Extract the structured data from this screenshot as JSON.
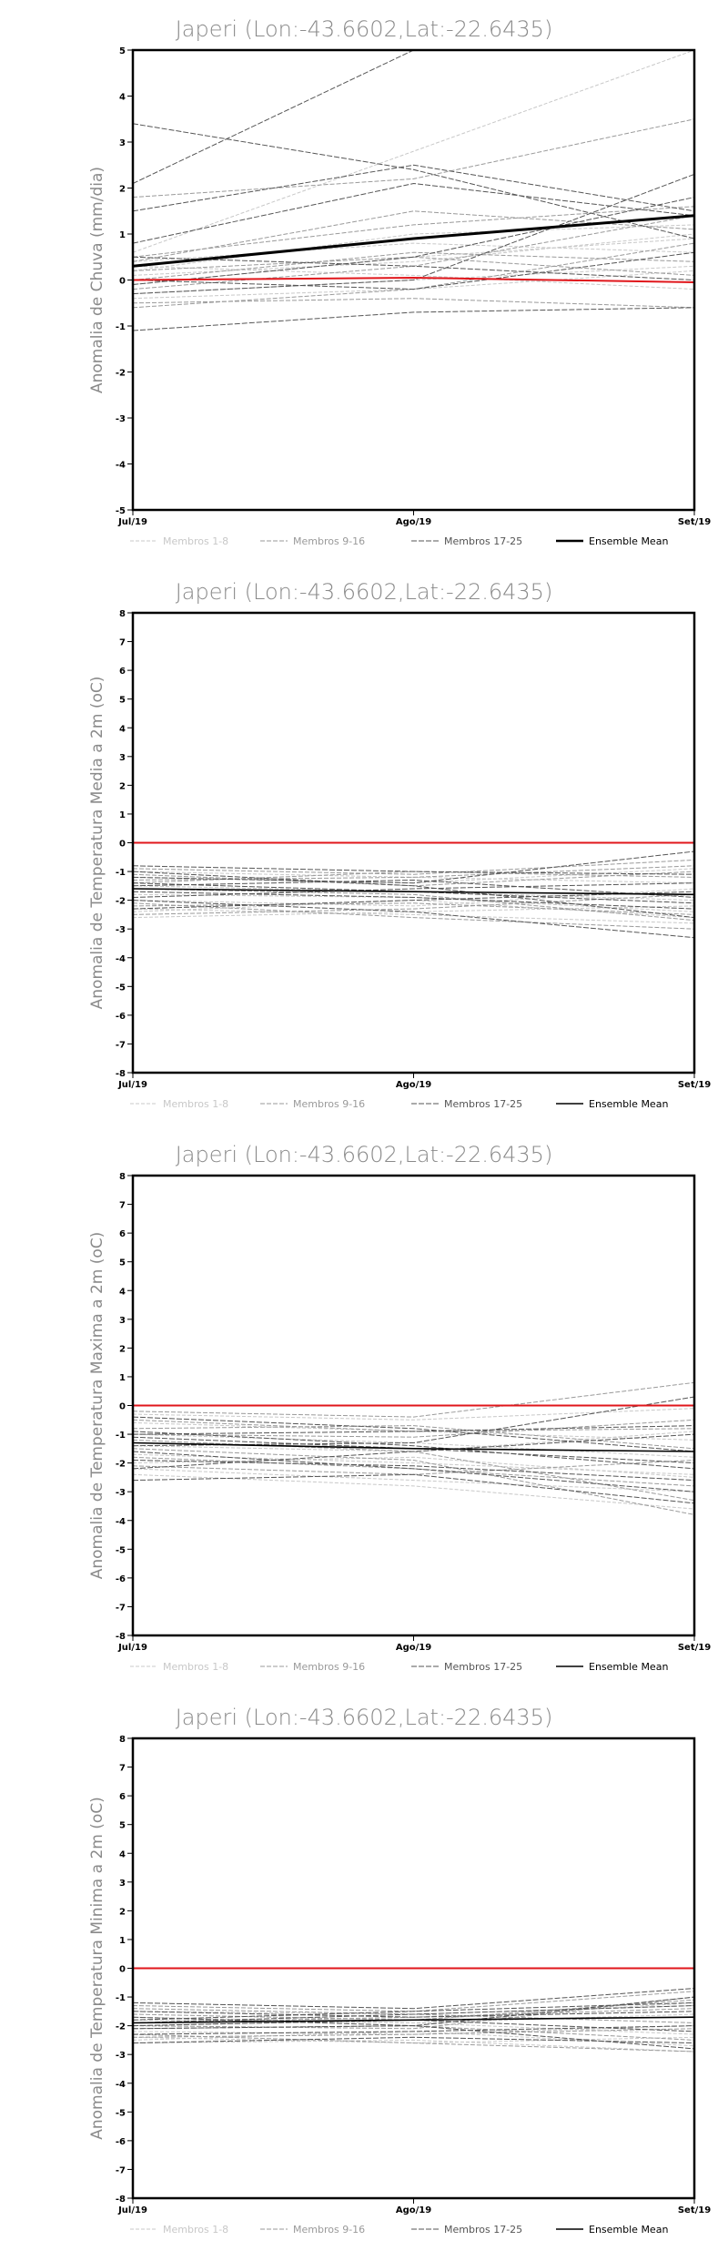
{
  "colors": {
    "zero_line": "#e0161b",
    "mean_line": "#000000",
    "members_1_8": "#c8c8c8",
    "members_9_16": "#9a9a9a",
    "members_17_25": "#555555"
  },
  "legend": [
    {
      "label": "Membros 1-8",
      "color": "#c8c8c8"
    },
    {
      "label": "Membros 9-16",
      "color": "#9a9a9a"
    },
    {
      "label": "Membros 17-25",
      "color": "#555555"
    },
    {
      "label": "Ensemble Mean",
      "color": "#000000"
    }
  ],
  "chart_data": [
    {
      "type": "line",
      "title": "Japeri (Lon:-43.6602,Lat:-22.6435)",
      "ylabel": "Anomalia de Chuva (mm/dia)",
      "x": [
        "Jul/19",
        "Ago/19",
        "Set/19"
      ],
      "ylim": [
        -5,
        5
      ],
      "yticks": [
        "-5",
        "-4",
        "-3",
        "-2",
        "-1",
        "0",
        "1",
        "2",
        "3",
        "4",
        "5"
      ],
      "members_1_8": [
        [
          0.6,
          2.8,
          5.0
        ],
        [
          0.2,
          1.0,
          1.2
        ],
        [
          -0.1,
          0.5,
          0.9
        ],
        [
          0.4,
          0.8,
          0.6
        ],
        [
          -0.3,
          0.0,
          0.3
        ],
        [
          0.1,
          0.4,
          1.0
        ],
        [
          -0.4,
          -0.2,
          0.2
        ],
        [
          0.3,
          0.1,
          -0.2
        ]
      ],
      "members_9_16": [
        [
          1.8,
          2.2,
          3.5
        ],
        [
          0.5,
          1.2,
          1.6
        ],
        [
          -0.2,
          0.3,
          1.4
        ],
        [
          0.0,
          0.6,
          0.4
        ],
        [
          -0.6,
          -0.2,
          0.8
        ],
        [
          0.2,
          0.5,
          0.1
        ],
        [
          -0.5,
          -0.4,
          -0.6
        ],
        [
          0.4,
          1.5,
          1.1
        ]
      ],
      "members_17_25": [
        [
          2.1,
          5.0,
          5.0
        ],
        [
          3.4,
          2.4,
          0.9
        ],
        [
          1.5,
          2.5,
          1.5
        ],
        [
          -1.1,
          -0.7,
          -0.6
        ],
        [
          0.8,
          2.1,
          1.4
        ],
        [
          -0.3,
          0.0,
          2.3
        ],
        [
          0.5,
          0.3,
          0.0
        ],
        [
          -0.1,
          0.5,
          1.8
        ],
        [
          0.0,
          -0.2,
          0.6
        ]
      ],
      "ensemble_mean": [
        0.3,
        0.9,
        1.4
      ],
      "zero_line": [
        0.0,
        0.05,
        -0.05
      ]
    },
    {
      "type": "line",
      "title": "Japeri (Lon:-43.6602,Lat:-22.6435)",
      "ylabel": "Anomalia de Temperatura Media a 2m (oC)",
      "x": [
        "Jul/19",
        "Ago/19",
        "Set/19"
      ],
      "ylim": [
        -8,
        8
      ],
      "yticks": [
        "-8",
        "-7",
        "-6",
        "-5",
        "-4",
        "-3",
        "-2",
        "-1",
        "0",
        "1",
        "2",
        "3",
        "4",
        "5",
        "6",
        "7",
        "8"
      ],
      "members_1_8": [
        [
          -2.3,
          -2.5,
          -2.8
        ],
        [
          -1.0,
          -1.2,
          -1.4
        ],
        [
          -2.6,
          -2.4,
          -2.2
        ],
        [
          -1.5,
          -1.7,
          -2.0
        ],
        [
          -2.0,
          -2.2,
          -1.6
        ],
        [
          -1.2,
          -1.4,
          -0.9
        ],
        [
          -2.4,
          -2.0,
          -2.6
        ],
        [
          -1.8,
          -1.9,
          -2.4
        ]
      ],
      "members_9_16": [
        [
          -0.9,
          -1.1,
          -0.6
        ],
        [
          -2.1,
          -2.6,
          -3.0
        ],
        [
          -1.4,
          -1.0,
          -1.2
        ],
        [
          -2.5,
          -2.3,
          -1.8
        ],
        [
          -1.6,
          -1.8,
          -2.7
        ],
        [
          -1.1,
          -1.5,
          -1.0
        ],
        [
          -2.2,
          -2.1,
          -2.5
        ],
        [
          -1.3,
          -1.2,
          -0.8
        ]
      ],
      "members_17_25": [
        [
          -1.2,
          -1.4,
          -0.3
        ],
        [
          -2.0,
          -2.4,
          -3.3
        ],
        [
          -1.5,
          -1.3,
          -1.9
        ],
        [
          -0.8,
          -1.0,
          -1.1
        ],
        [
          -1.7,
          -1.9,
          -2.3
        ],
        [
          -2.3,
          -2.0,
          -1.7
        ],
        [
          -1.0,
          -1.5,
          -2.6
        ],
        [
          -1.9,
          -1.6,
          -1.4
        ],
        [
          -1.4,
          -1.7,
          -2.1
        ]
      ],
      "ensemble_mean": [
        -1.6,
        -1.7,
        -1.8
      ],
      "zero_line": [
        0.0,
        0.0,
        0.0
      ]
    },
    {
      "type": "line",
      "title": "Japeri (Lon:-43.6602,Lat:-22.6435)",
      "ylabel": "Anomalia de Temperatura Maxima a 2m (oC)",
      "x": [
        "Jul/19",
        "Ago/19",
        "Set/19"
      ],
      "ylim": [
        -8,
        8
      ],
      "yticks": [
        "-8",
        "-7",
        "-6",
        "-5",
        "-4",
        "-3",
        "-2",
        "-1",
        "0",
        "1",
        "2",
        "3",
        "4",
        "5",
        "6",
        "7",
        "8"
      ],
      "members_1_8": [
        [
          -2.4,
          -2.8,
          -3.6
        ],
        [
          -0.6,
          -0.9,
          -1.2
        ],
        [
          -2.0,
          -1.8,
          -2.5
        ],
        [
          -1.4,
          -1.6,
          -0.9
        ],
        [
          -0.3,
          -0.5,
          -0.1
        ],
        [
          -2.2,
          -2.6,
          -3.0
        ],
        [
          -1.0,
          -1.3,
          -1.8
        ],
        [
          -1.7,
          -2.0,
          -2.4
        ]
      ],
      "members_9_16": [
        [
          -0.2,
          -0.4,
          0.8
        ],
        [
          -1.2,
          -1.6,
          -3.3
        ],
        [
          -1.8,
          -2.2,
          -2.8
        ],
        [
          -0.8,
          -0.7,
          -1.5
        ],
        [
          -2.1,
          -2.4,
          -1.9
        ],
        [
          -1.0,
          -1.1,
          -0.5
        ],
        [
          -1.5,
          -1.9,
          -3.8
        ],
        [
          -0.5,
          -0.9,
          -0.8
        ]
      ],
      "members_17_25": [
        [
          -1.4,
          -1.3,
          0.3
        ],
        [
          -0.9,
          -1.4,
          -2.2
        ],
        [
          -2.2,
          -1.6,
          -1.0
        ],
        [
          -1.6,
          -2.2,
          -3.0
        ],
        [
          -0.4,
          -0.8,
          -1.6
        ],
        [
          -1.1,
          -1.5,
          -2.0
        ],
        [
          -1.9,
          -2.1,
          -2.6
        ],
        [
          -2.6,
          -2.4,
          -3.4
        ],
        [
          -1.0,
          -0.9,
          -0.7
        ]
      ],
      "ensemble_mean": [
        -1.3,
        -1.5,
        -1.6
      ],
      "zero_line": [
        0.0,
        0.0,
        0.0
      ]
    },
    {
      "type": "line",
      "title": "Japeri (Lon:-43.6602,Lat:-22.6435)",
      "ylabel": "Anomalia de Temperatura Minima a 2m (oC)",
      "x": [
        "Jul/19",
        "Ago/19",
        "Set/19"
      ],
      "ylim": [
        -8,
        8
      ],
      "yticks": [
        "-8",
        "-7",
        "-6",
        "-5",
        "-4",
        "-3",
        "-2",
        "-1",
        "0",
        "1",
        "2",
        "3",
        "4",
        "5",
        "6",
        "7",
        "8"
      ],
      "members_1_8": [
        [
          -2.6,
          -2.5,
          -2.9
        ],
        [
          -1.8,
          -1.9,
          -1.6
        ],
        [
          -2.2,
          -2.3,
          -2.0
        ],
        [
          -1.5,
          -1.6,
          -1.3
        ],
        [
          -2.4,
          -2.6,
          -2.4
        ],
        [
          -2.0,
          -1.8,
          -1.2
        ],
        [
          -2.5,
          -2.2,
          -2.7
        ],
        [
          -1.7,
          -1.9,
          -2.3
        ]
      ],
      "members_9_16": [
        [
          -1.3,
          -1.5,
          -0.8
        ],
        [
          -2.3,
          -2.6,
          -2.9
        ],
        [
          -1.9,
          -1.7,
          -1.4
        ],
        [
          -2.1,
          -2.0,
          -2.5
        ],
        [
          -1.6,
          -1.8,
          -1.1
        ],
        [
          -2.4,
          -2.3,
          -2.1
        ],
        [
          -1.4,
          -1.6,
          -1.9
        ],
        [
          -2.0,
          -2.1,
          -1.0
        ]
      ],
      "members_17_25": [
        [
          -1.2,
          -1.4,
          -0.7
        ],
        [
          -2.1,
          -2.0,
          -2.8
        ],
        [
          -1.8,
          -1.5,
          -1.2
        ],
        [
          -2.6,
          -2.4,
          -2.6
        ],
        [
          -1.5,
          -1.7,
          -1.5
        ],
        [
          -2.0,
          -1.8,
          -2.2
        ],
        [
          -1.7,
          -2.0,
          -1.0
        ],
        [
          -2.3,
          -2.2,
          -2.0
        ],
        [
          -1.9,
          -1.6,
          -1.3
        ]
      ],
      "ensemble_mean": [
        -1.9,
        -1.8,
        -1.7
      ],
      "zero_line": [
        0.0,
        0.0,
        0.0
      ]
    }
  ]
}
